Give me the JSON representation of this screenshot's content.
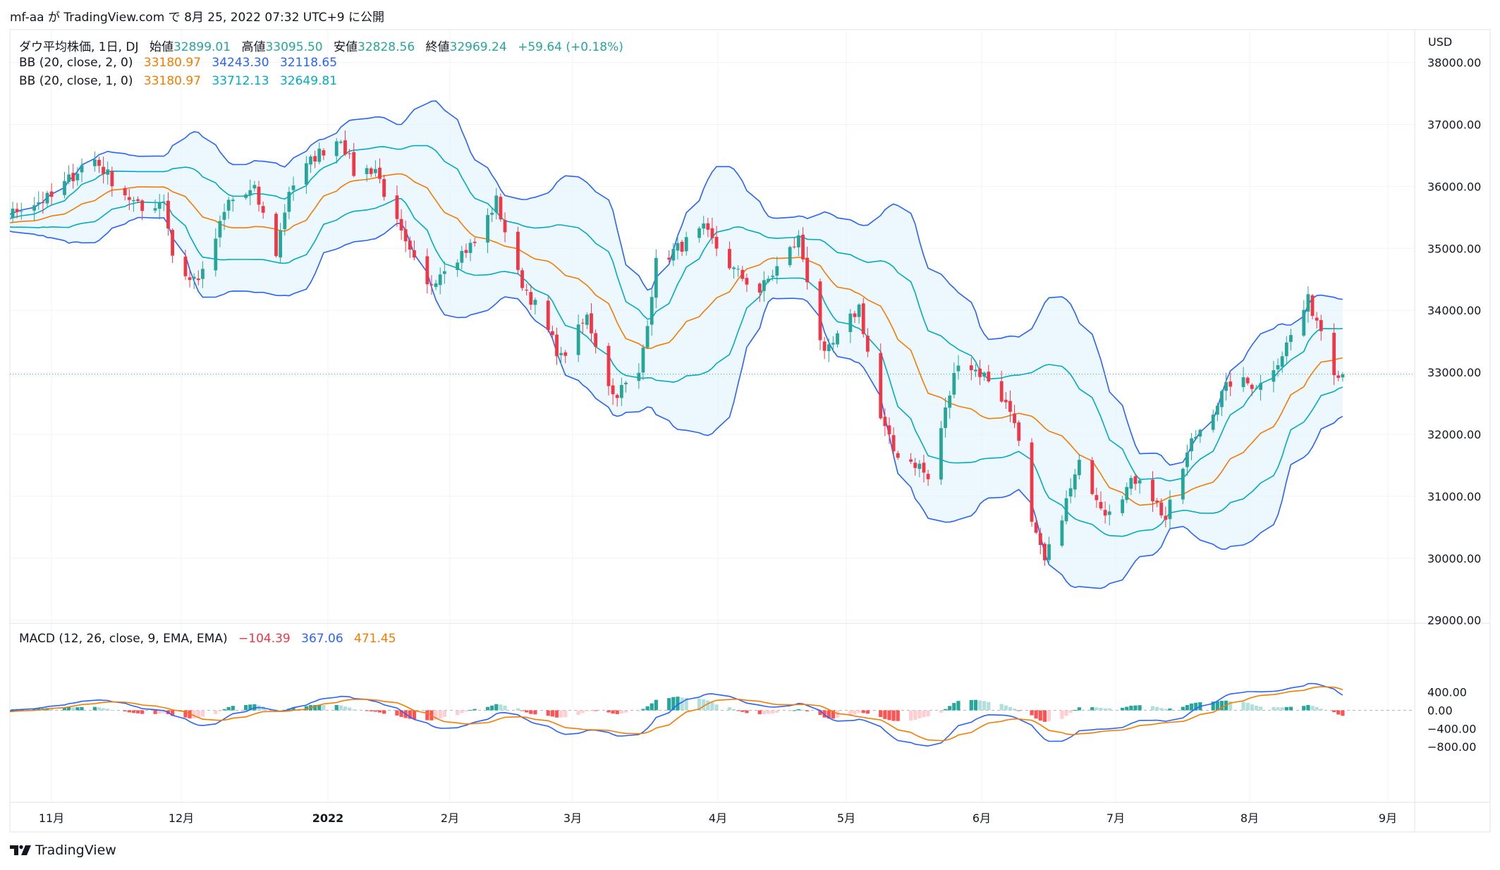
{
  "header": {
    "text": "mf-aa が TradingView.com で 8月 25, 2022 07:32 UTC+9 に公開"
  },
  "legend": {
    "symbol": "ダウ平均株価, 1日, DJ",
    "open_label": "始値",
    "open": "32899.01",
    "high_label": "高値",
    "high": "33095.50",
    "low_label": "安値",
    "low": "32828.56",
    "close_label": "終値",
    "close": "32969.24",
    "change": "+59.64 (+0.18%)",
    "bb2": {
      "label": "BB (20, close, 2, 0)",
      "basis": "33180.97",
      "upper": "34243.30",
      "lower": "32118.65"
    },
    "bb1": {
      "label": "BB (20, close, 1, 0)",
      "basis": "33180.97",
      "upper": "33712.13",
      "lower": "32649.81"
    },
    "macd": {
      "label": "MACD (12, 26, close, 9, EMA, EMA)",
      "hist": "−104.39",
      "macd": "367.06",
      "signal": "471.45"
    }
  },
  "currency": "USD",
  "footer": {
    "brand": "TradingView"
  },
  "colors": {
    "up": "#26a69a",
    "down": "#f23645",
    "basis": "#f57c00",
    "band2": "#2962ff",
    "band1": "#00acc1",
    "fill": "#e3f2fd"
  },
  "chart_data": [
    {
      "type": "candlestick",
      "title": "ダウ平均株価, 1日, DJ",
      "ylim": [
        28800,
        38800
      ],
      "yticks": [
        "29000.00",
        "30000.00",
        "31000.00",
        "32000.00",
        "33000.00",
        "34000.00",
        "35000.00",
        "36000.00",
        "37000.00",
        "38000.00"
      ],
      "last_price": 32969.24,
      "xticks": [
        "11月",
        "12月",
        "2022",
        "2月",
        "3月",
        "4月",
        "5月",
        "6月",
        "7月",
        "8月",
        "9月"
      ],
      "x_start": "2021-10-15",
      "x_end": "2022-08-24",
      "close_anchors": [
        [
          "2021-10-15",
          35294
        ],
        [
          "2021-10-22",
          35677
        ],
        [
          "2021-10-29",
          35820
        ],
        [
          "2021-11-05",
          36327
        ],
        [
          "2021-11-08",
          36432
        ],
        [
          "2021-11-12",
          36100
        ],
        [
          "2021-11-19",
          35601
        ],
        [
          "2021-11-24",
          35804
        ],
        [
          "2021-11-26",
          34899
        ],
        [
          "2021-11-30",
          34483
        ],
        [
          "2021-12-03",
          34580
        ],
        [
          "2021-12-09",
          35754
        ],
        [
          "2021-12-15",
          35927
        ],
        [
          "2021-12-20",
          34932
        ],
        [
          "2021-12-23",
          35950
        ],
        [
          "2021-12-29",
          36488
        ],
        [
          "2022-01-04",
          36799
        ],
        [
          "2022-01-07",
          36231
        ],
        [
          "2022-01-12",
          36290
        ],
        [
          "2022-01-14",
          35911
        ],
        [
          "2022-01-19",
          35028
        ],
        [
          "2022-01-24",
          34364
        ],
        [
          "2022-01-28",
          34725
        ],
        [
          "2022-02-04",
          35089
        ],
        [
          "2022-02-09",
          35768
        ],
        [
          "2022-02-14",
          34566
        ],
        [
          "2022-02-18",
          34079
        ],
        [
          "2022-02-24",
          33223
        ],
        [
          "2022-03-02",
          33891
        ],
        [
          "2022-03-08",
          32632
        ],
        [
          "2022-03-14",
          32945
        ],
        [
          "2022-03-18",
          34754
        ],
        [
          "2022-03-29",
          35294
        ],
        [
          "2022-04-05",
          34641
        ],
        [
          "2022-04-11",
          34308
        ],
        [
          "2022-04-20",
          35160
        ],
        [
          "2022-04-26",
          33240
        ],
        [
          "2022-05-04",
          34061
        ],
        [
          "2022-05-09",
          32245
        ],
        [
          "2022-05-12",
          31730
        ],
        [
          "2022-05-18",
          31490
        ],
        [
          "2022-05-20",
          31262
        ],
        [
          "2022-05-27",
          33213
        ],
        [
          "2022-06-03",
          32900
        ],
        [
          "2022-06-09",
          32273
        ],
        [
          "2022-06-13",
          30517
        ],
        [
          "2022-06-16",
          29927
        ],
        [
          "2022-06-24",
          31501
        ],
        [
          "2022-06-30",
          30775
        ],
        [
          "2022-07-08",
          31338
        ],
        [
          "2022-07-14",
          30630
        ],
        [
          "2022-07-20",
          31875
        ],
        [
          "2022-07-29",
          32845
        ],
        [
          "2022-08-05",
          32803
        ],
        [
          "2022-08-10",
          33309
        ],
        [
          "2022-08-16",
          34152
        ],
        [
          "2022-08-19",
          33706
        ],
        [
          "2022-08-22",
          33063
        ],
        [
          "2022-08-23",
          32909
        ],
        [
          "2022-08-24",
          32969
        ]
      ],
      "bollinger": {
        "period": 20,
        "mult_outer": 2,
        "mult_inner": 1,
        "last": {
          "basis": 33180.97,
          "upper2": 34243.3,
          "lower2": 32118.65,
          "upper1": 33712.13,
          "lower1": 32649.81
        }
      }
    },
    {
      "type": "macd",
      "title": "MACD (12, 26, close, 9, EMA, EMA)",
      "ylim": [
        -820,
        620
      ],
      "yticks": [
        "400.00",
        "0.00",
        "−400.00",
        "−800.00"
      ],
      "last": {
        "hist": -104.39,
        "macd": 367.06,
        "signal": 471.45
      }
    }
  ]
}
